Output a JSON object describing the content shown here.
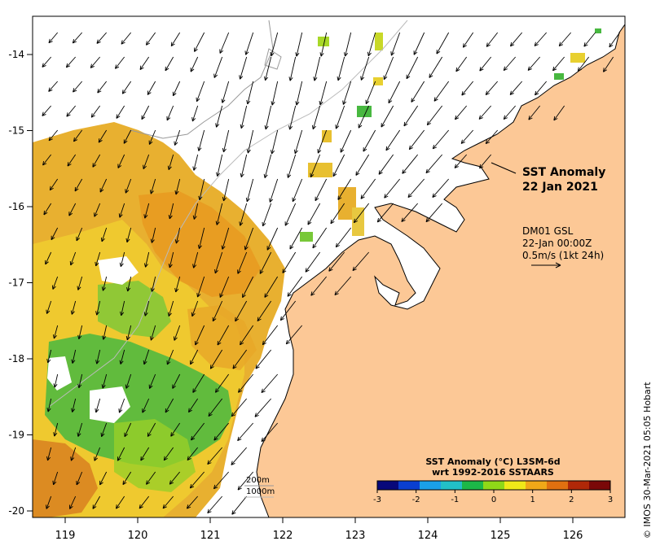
{
  "map": {
    "title_line1": "SST Anomaly",
    "title_line2": "22 Jan 2021",
    "info": {
      "line1": "DM01 GSL",
      "line2": "22-Jan 00:00Z",
      "line3": "0.5m/s (1kt 24h)"
    },
    "x_ticks": [
      "119",
      "120",
      "121",
      "122",
      "123",
      "124",
      "125",
      "126"
    ],
    "y_ticks": [
      "-14",
      "-15",
      "-16",
      "-17",
      "-18",
      "-19",
      "-20"
    ],
    "depth_legend": {
      "label1": "200m",
      "label2": "1000m"
    },
    "colorbar": {
      "title_line1": "SST Anomaly (°C) L3SM-6d",
      "title_line2": "wrt 1992-2016 SSTAARS",
      "ticks": [
        "-3",
        "-2",
        "-1",
        "0",
        "1",
        "2",
        "3"
      ],
      "colors": [
        "#08087a",
        "#0a3fd0",
        "#1aa0e8",
        "#22c0c8",
        "#1cb848",
        "#8fd818",
        "#f0e818",
        "#f0a818",
        "#e07010",
        "#b02808",
        "#7a0808"
      ]
    },
    "credit": "© IMOS 30-Mar-2021 05:05 Hobart",
    "colors": {
      "land": "#fcc896",
      "ocean": "#ffffff",
      "green": "#3cb84a",
      "yellow": "#e8c020",
      "orange": "#e8a020"
    }
  }
}
